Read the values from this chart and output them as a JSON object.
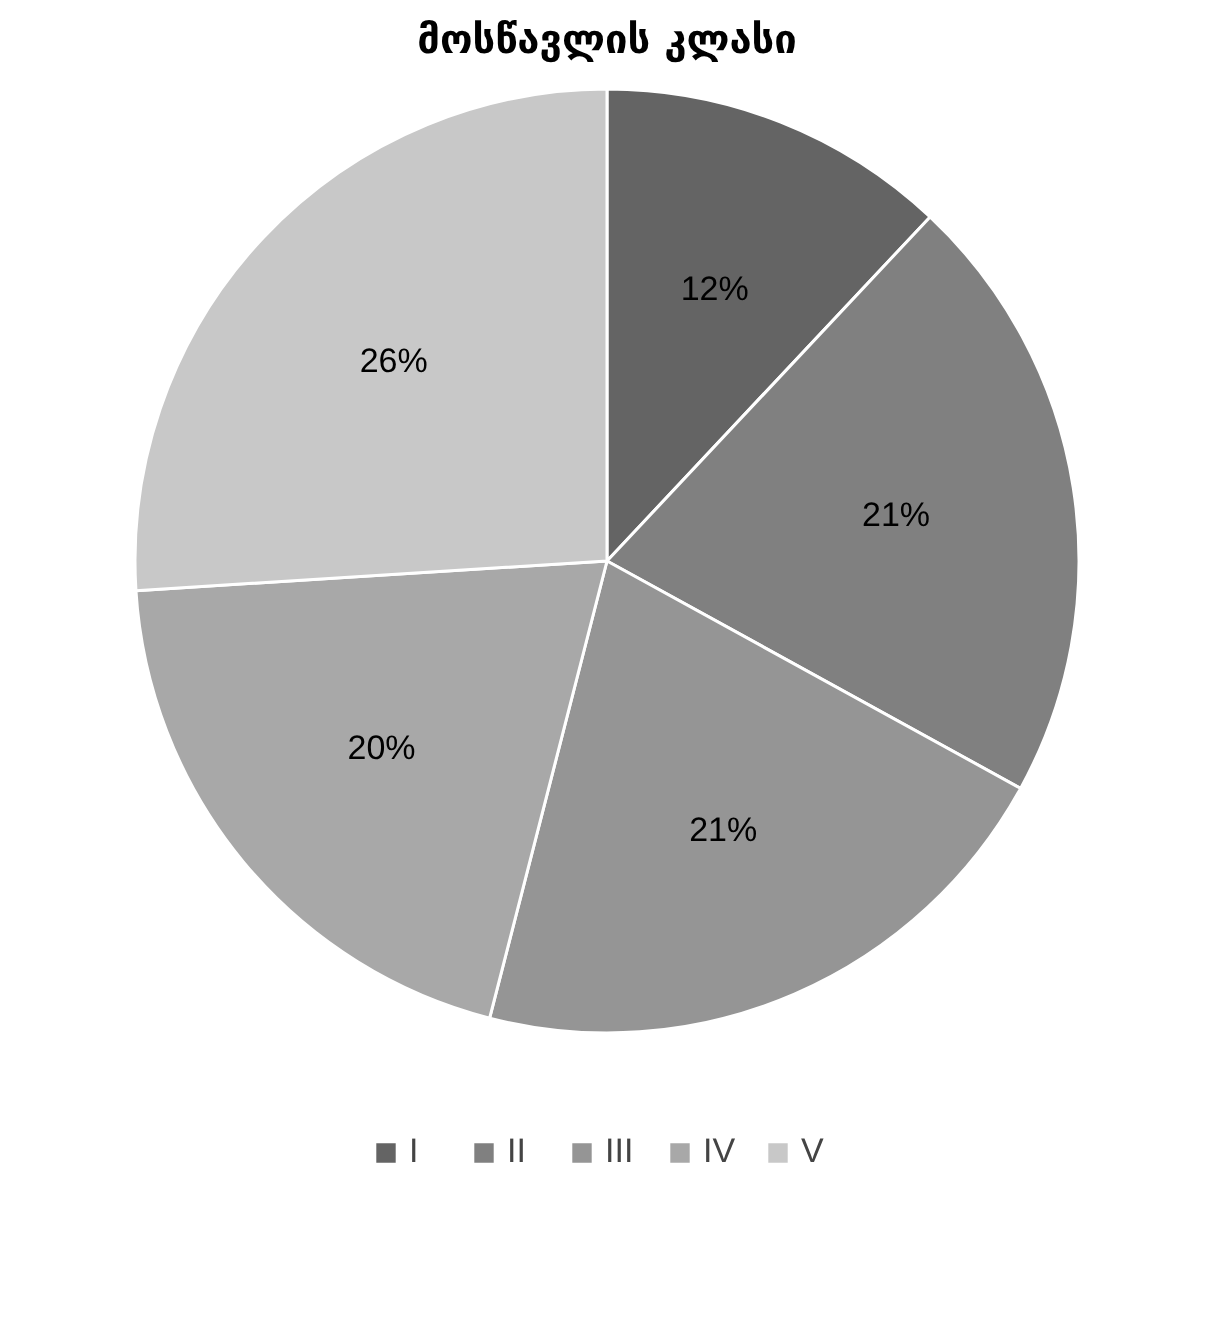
{
  "chart_data": {
    "type": "pie",
    "title": "მოსწავლის კლასი",
    "categories": [
      "I",
      "II",
      "III",
      "IV",
      "V"
    ],
    "values": [
      12,
      21,
      21,
      20,
      26
    ],
    "colors": [
      "#646464",
      "#808080",
      "#959595",
      "#a8a8a8",
      "#c8c8c8"
    ],
    "value_labels": [
      "12%",
      "21%",
      "21%",
      "20%",
      "26%"
    ],
    "legend": "bottom"
  }
}
